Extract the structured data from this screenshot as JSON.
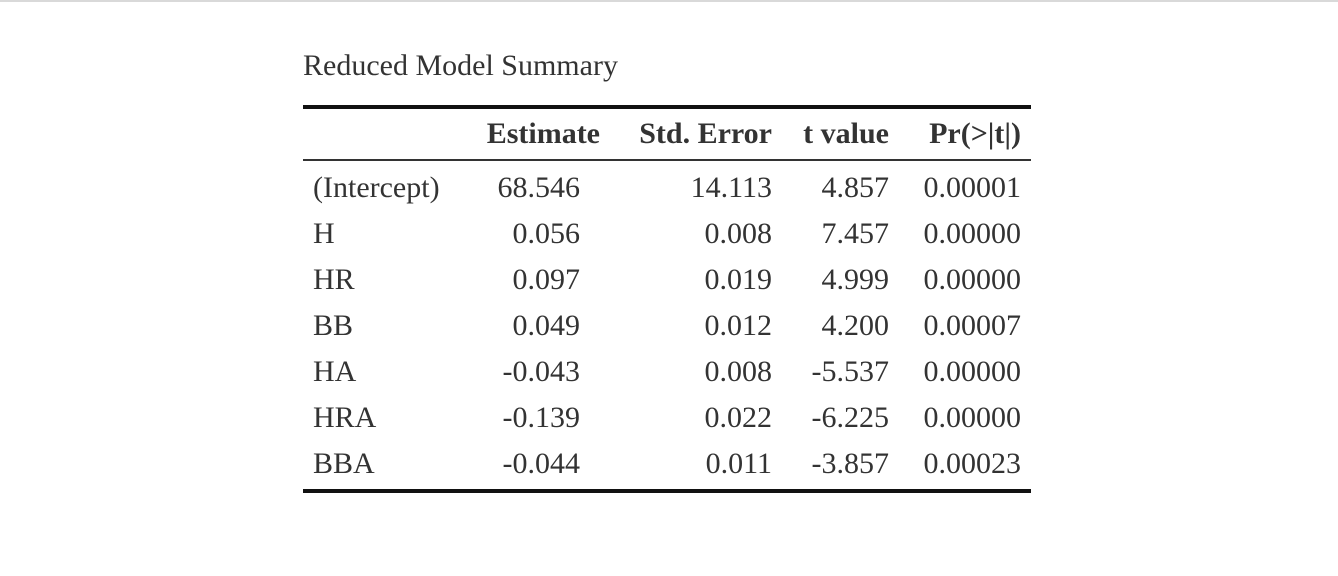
{
  "caption": "Reduced Model Summary",
  "table": {
    "columns": [
      "",
      "Estimate",
      "Std. Error",
      "t value",
      "Pr(>|t|)"
    ],
    "rows": [
      {
        "term": "(Intercept)",
        "estimate": "68.546",
        "std_error": "14.113",
        "t_value": "4.857",
        "p_value": "0.00001"
      },
      {
        "term": "H",
        "estimate": "0.056",
        "std_error": "0.008",
        "t_value": "7.457",
        "p_value": "0.00000"
      },
      {
        "term": "HR",
        "estimate": "0.097",
        "std_error": "0.019",
        "t_value": "4.999",
        "p_value": "0.00000"
      },
      {
        "term": "BB",
        "estimate": "0.049",
        "std_error": "0.012",
        "t_value": "4.200",
        "p_value": "0.00007"
      },
      {
        "term": "HA",
        "estimate": "-0.043",
        "std_error": "0.008",
        "t_value": "-5.537",
        "p_value": "0.00000"
      },
      {
        "term": "HRA",
        "estimate": "-0.139",
        "std_error": "0.022",
        "t_value": "-6.225",
        "p_value": "0.00000"
      },
      {
        "term": "BBA",
        "estimate": "-0.044",
        "std_error": "0.011",
        "t_value": "-3.857",
        "p_value": "0.00023"
      }
    ]
  }
}
